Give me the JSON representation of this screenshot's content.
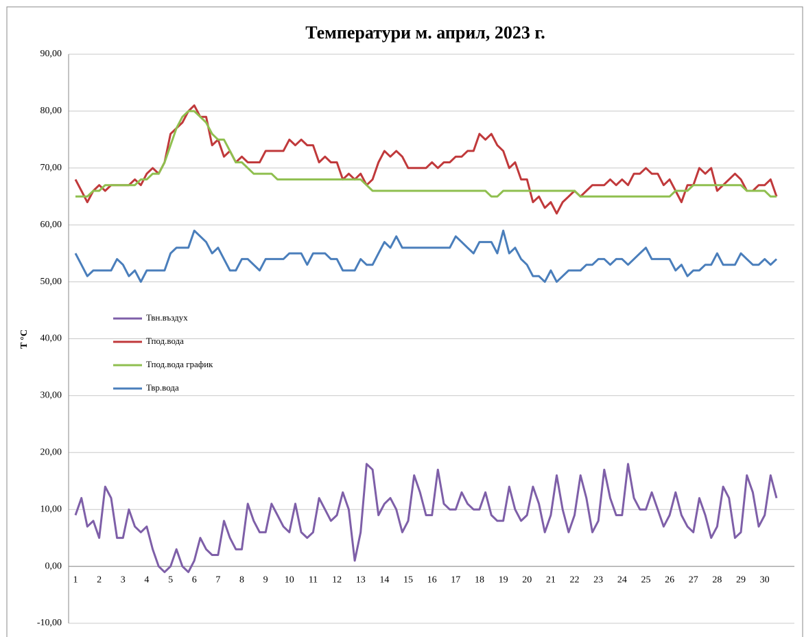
{
  "chart_data": {
    "type": "line",
    "title": "Температури м. април, 2023 г.",
    "y_label": "T °C",
    "categories": [
      "1",
      null,
      null,
      null,
      "2",
      null,
      null,
      null,
      "3",
      null,
      null,
      null,
      "4",
      null,
      null,
      null,
      "5",
      null,
      null,
      null,
      "6",
      null,
      null,
      null,
      "7",
      null,
      null,
      null,
      "8",
      null,
      null,
      null,
      "9",
      null,
      null,
      null,
      "10",
      null,
      null,
      null,
      "11",
      null,
      null,
      null,
      "12",
      null,
      null,
      null,
      "13",
      null,
      null,
      null,
      "14",
      null,
      null,
      null,
      "15",
      null,
      null,
      null,
      "16",
      null,
      null,
      null,
      "17",
      null,
      null,
      null,
      "18",
      null,
      null,
      null,
      "19",
      null,
      null,
      null,
      "20",
      null,
      null,
      null,
      "21",
      null,
      null,
      null,
      "22",
      null,
      null,
      null,
      "23",
      null,
      null,
      null,
      "24",
      null,
      null,
      null,
      "25",
      null,
      null,
      null,
      "26",
      null,
      null,
      null,
      "27",
      null,
      null,
      null,
      "28",
      null,
      null,
      null,
      "29",
      null,
      null,
      null,
      "30",
      null,
      null
    ],
    "series": [
      {
        "name": "Твн.въздух",
        "color": "#7e5fa8",
        "values": [
          9,
          12,
          7,
          8,
          5,
          14,
          12,
          5,
          5,
          10,
          7,
          6,
          7,
          3,
          0,
          -1,
          0,
          3,
          0,
          -1,
          1,
          5,
          3,
          2,
          2,
          8,
          5,
          3,
          3,
          11,
          8,
          6,
          6,
          11,
          9,
          7,
          6,
          11,
          6,
          5,
          6,
          12,
          10,
          8,
          9,
          13,
          10,
          1,
          6,
          18,
          17,
          9,
          11,
          12,
          10,
          6,
          8,
          16,
          13,
          9,
          9,
          17,
          11,
          10,
          10,
          13,
          11,
          10,
          10,
          13,
          9,
          8,
          8,
          14,
          10,
          8,
          9,
          14,
          11,
          6,
          9,
          16,
          10,
          6,
          9,
          16,
          12,
          6,
          8,
          17,
          12,
          9,
          9,
          18,
          12,
          10,
          10,
          13,
          10,
          7,
          9,
          13,
          9,
          7,
          6,
          12,
          9,
          5,
          7,
          14,
          12,
          5,
          6,
          16,
          13,
          7,
          9,
          16,
          12
        ]
      },
      {
        "name": "Тпод.вода",
        "color": "#c0393b",
        "values": [
          68,
          66,
          64,
          66,
          67,
          66,
          67,
          67,
          67,
          67,
          68,
          67,
          69,
          70,
          69,
          71,
          76,
          77,
          78,
          80,
          81,
          79,
          79,
          74,
          75,
          72,
          73,
          71,
          72,
          71,
          71,
          71,
          73,
          73,
          73,
          73,
          75,
          74,
          75,
          74,
          74,
          71,
          72,
          71,
          71,
          68,
          69,
          68,
          69,
          67,
          68,
          71,
          73,
          72,
          73,
          72,
          70,
          70,
          70,
          70,
          71,
          70,
          71,
          71,
          72,
          72,
          73,
          73,
          76,
          75,
          76,
          74,
          73,
          70,
          71,
          68,
          68,
          64,
          65,
          63,
          64,
          62,
          64,
          65,
          66,
          65,
          66,
          67,
          67,
          67,
          68,
          67,
          68,
          67,
          69,
          69,
          70,
          69,
          69,
          67,
          68,
          66,
          64,
          67,
          67,
          70,
          69,
          70,
          66,
          67,
          68,
          69,
          68,
          66,
          66,
          67,
          67,
          68,
          65
        ]
      },
      {
        "name": "Тпод.вода график",
        "color": "#8fbf4f",
        "values": [
          65,
          65,
          65,
          66,
          66,
          67,
          67,
          67,
          67,
          67,
          67,
          68,
          68,
          69,
          69,
          71,
          74,
          77,
          79,
          80,
          80,
          79,
          78,
          76,
          75,
          75,
          73,
          71,
          71,
          70,
          69,
          69,
          69,
          69,
          68,
          68,
          68,
          68,
          68,
          68,
          68,
          68,
          68,
          68,
          68,
          68,
          68,
          68,
          68,
          67,
          66,
          66,
          66,
          66,
          66,
          66,
          66,
          66,
          66,
          66,
          66,
          66,
          66,
          66,
          66,
          66,
          66,
          66,
          66,
          66,
          65,
          65,
          66,
          66,
          66,
          66,
          66,
          66,
          66,
          66,
          66,
          66,
          66,
          66,
          66,
          65,
          65,
          65,
          65,
          65,
          65,
          65,
          65,
          65,
          65,
          65,
          65,
          65,
          65,
          65,
          65,
          66,
          66,
          66,
          67,
          67,
          67,
          67,
          67,
          67,
          67,
          67,
          67,
          66,
          66,
          66,
          66,
          65,
          65
        ]
      },
      {
        "name": "Твр.вода",
        "color": "#4a7ebb",
        "values": [
          55,
          53,
          51,
          52,
          52,
          52,
          52,
          54,
          53,
          51,
          52,
          50,
          52,
          52,
          52,
          52,
          55,
          56,
          56,
          56,
          59,
          58,
          57,
          55,
          56,
          54,
          52,
          52,
          54,
          54,
          53,
          52,
          54,
          54,
          54,
          54,
          55,
          55,
          55,
          53,
          55,
          55,
          55,
          54,
          54,
          52,
          52,
          52,
          54,
          53,
          53,
          55,
          57,
          56,
          58,
          56,
          56,
          56,
          56,
          56,
          56,
          56,
          56,
          56,
          58,
          57,
          56,
          55,
          57,
          57,
          57,
          55,
          59,
          55,
          56,
          54,
          53,
          51,
          51,
          50,
          52,
          50,
          51,
          52,
          52,
          52,
          53,
          53,
          54,
          54,
          53,
          54,
          54,
          53,
          54,
          55,
          56,
          54,
          54,
          54,
          54,
          52,
          53,
          51,
          52,
          52,
          53,
          53,
          55,
          53,
          53,
          53,
          55,
          54,
          53,
          53,
          54,
          53,
          54
        ]
      }
    ],
    "ylim": [
      -10,
      90
    ],
    "yticks": [
      {
        "value": -10,
        "label": "-10,00"
      },
      {
        "value": 0,
        "label": "0,00"
      },
      {
        "value": 10,
        "label": "10,00"
      },
      {
        "value": 20,
        "label": "20,00"
      },
      {
        "value": 30,
        "label": "30,00"
      },
      {
        "value": 40,
        "label": "40,00"
      },
      {
        "value": 50,
        "label": "50,00"
      },
      {
        "value": 60,
        "label": "60,00"
      },
      {
        "value": 70,
        "label": "70,00"
      },
      {
        "value": 80,
        "label": "80,00"
      },
      {
        "value": 90,
        "label": "90,00"
      }
    ],
    "grid": true,
    "legend": "left"
  }
}
